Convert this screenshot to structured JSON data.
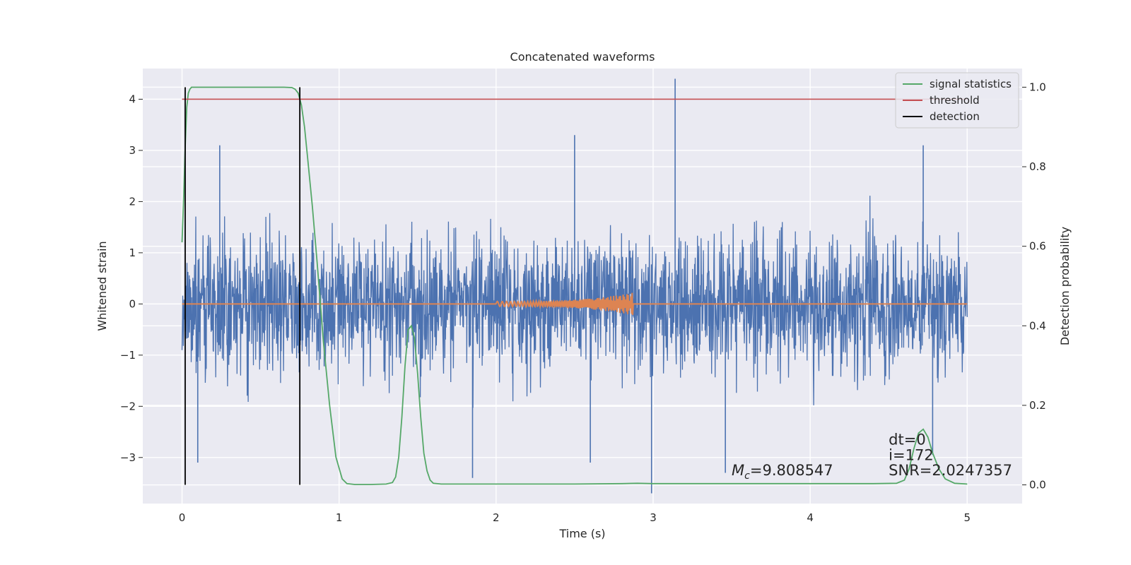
{
  "chart_data": {
    "type": "line",
    "title": "Concatenated waveforms",
    "xlabel": "Time (s)",
    "ylabel": "Whitened strain",
    "y2label": "Detection probability",
    "xlim": [
      -0.25,
      5.35
    ],
    "ylim": [
      -3.9,
      4.6
    ],
    "y2lim": [
      -0.047,
      1.047
    ],
    "xticks": [
      "0",
      "1",
      "2",
      "3",
      "4",
      "5"
    ],
    "yticks": [
      "−3",
      "−2",
      "−1",
      "0",
      "1",
      "2",
      "3",
      "4"
    ],
    "y2ticks": [
      "0.0",
      "0.2",
      "0.4",
      "0.6",
      "0.8",
      "1.0"
    ],
    "grid": true,
    "legend_position": "top-right",
    "legend": [
      "signal statistics",
      "threshold",
      "detection"
    ],
    "series": [
      {
        "name": "",
        "kind": "noise",
        "color": "#4c72b0",
        "x_range": [
          0,
          5
        ],
        "envelope_max": 3.1,
        "peaks": [
          {
            "x": 3.14,
            "y": 4.4
          },
          {
            "x": 2.5,
            "y": 3.3
          },
          {
            "x": 4.72,
            "y": 3.1
          },
          {
            "x": 0.24,
            "y": 3.1
          },
          {
            "x": 0.1,
            "y": -3.1
          },
          {
            "x": 2.99,
            "y": -3.7
          },
          {
            "x": 1.85,
            "y": -3.4
          },
          {
            "x": 3.46,
            "y": -3.3
          },
          {
            "x": 4.78,
            "y": -2.95
          },
          {
            "x": 2.6,
            "y": -3.1
          }
        ]
      },
      {
        "name": "",
        "kind": "chirp",
        "color": "#dd8452",
        "x_range": [
          0,
          5
        ],
        "chirp_start": 2.0,
        "chirp_end": 2.87,
        "amplitude_start": 0.05,
        "amplitude_end": 0.22
      },
      {
        "name": "signal statistics",
        "kind": "line",
        "axis": "right",
        "color": "#55a868",
        "x": [
          0.0,
          0.01,
          0.02,
          0.03,
          0.04,
          0.05,
          0.06,
          0.08,
          0.1,
          0.15,
          0.3,
          0.5,
          0.65,
          0.7,
          0.72,
          0.74,
          0.76,
          0.78,
          0.8,
          0.83,
          0.86,
          0.9,
          0.94,
          0.98,
          1.02,
          1.05,
          1.1,
          1.2,
          1.3,
          1.34,
          1.36,
          1.38,
          1.4,
          1.42,
          1.44,
          1.46,
          1.48,
          1.5,
          1.52,
          1.54,
          1.56,
          1.58,
          1.6,
          1.65,
          1.8,
          2.0,
          2.5,
          2.8,
          2.9,
          3.0,
          3.5,
          4.0,
          4.4,
          4.55,
          4.6,
          4.63,
          4.66,
          4.69,
          4.72,
          4.75,
          4.78,
          4.82,
          4.86,
          4.92,
          5.0
        ],
        "values": [
          0.61,
          0.72,
          0.85,
          0.95,
          0.985,
          0.995,
          1.0,
          1.0,
          1.0,
          1.0,
          1.0,
          1.0,
          1.0,
          0.999,
          0.995,
          0.985,
          0.955,
          0.9,
          0.82,
          0.7,
          0.56,
          0.36,
          0.2,
          0.07,
          0.015,
          0.003,
          0.001,
          0.001,
          0.002,
          0.006,
          0.02,
          0.07,
          0.17,
          0.3,
          0.39,
          0.4,
          0.37,
          0.28,
          0.17,
          0.08,
          0.035,
          0.012,
          0.004,
          0.002,
          0.002,
          0.002,
          0.002,
          0.003,
          0.004,
          0.003,
          0.003,
          0.003,
          0.003,
          0.004,
          0.012,
          0.04,
          0.09,
          0.13,
          0.14,
          0.12,
          0.08,
          0.04,
          0.015,
          0.004,
          0.002
        ]
      },
      {
        "name": "threshold",
        "kind": "hline",
        "axis": "left",
        "color": "#c44e52",
        "y": 4.0,
        "x_range": [
          0,
          5
        ]
      },
      {
        "name": "detection",
        "kind": "vlines",
        "axis": "right",
        "color": "#000000",
        "x": [
          0.02,
          0.75
        ],
        "y_range": [
          0,
          1
        ]
      }
    ],
    "annotations": [
      {
        "prefix": "M",
        "sub": "c",
        "text": "=9.808547",
        "x": 3.5,
        "y": -3.35
      },
      {
        "text": "dt=0",
        "x": 4.5,
        "y": -2.75
      },
      {
        "text": "i=172",
        "x": 4.5,
        "y": -3.05
      },
      {
        "text": "SNR=2.0247357",
        "x": 4.5,
        "y": -3.35
      }
    ]
  }
}
